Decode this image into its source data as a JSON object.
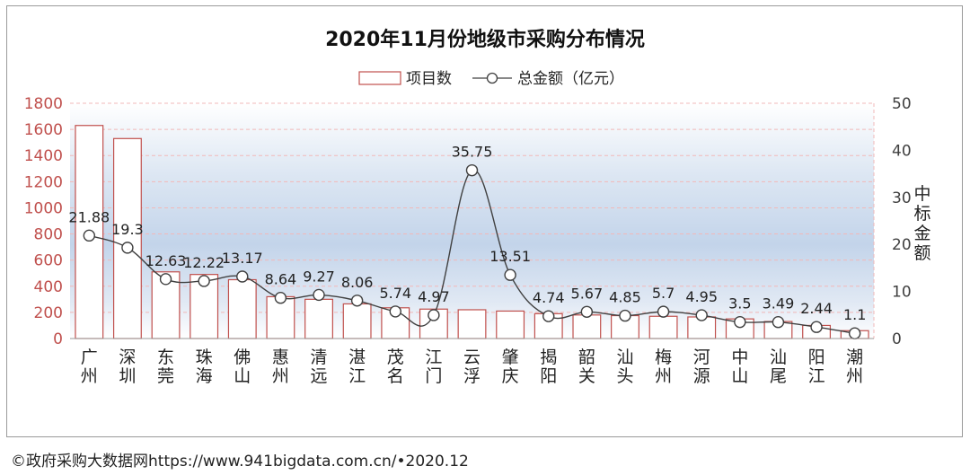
{
  "footer": {
    "source": "©政府采购大数据网https://www.941bigdata.com.cn/•2020.12"
  },
  "colors": {
    "bar_edge": "#c0504d",
    "bar_fill": "#ffffff",
    "line": "#404040",
    "left_axis": "#c0504d",
    "right_axis": "#404040",
    "grid": "#f2b8b8"
  },
  "chart_data": {
    "type": "bar+line",
    "title": "2020年11月份地级市采购分布情况",
    "legend": {
      "bar": "项目数",
      "line": "总金额（亿元）",
      "position": "top-center"
    },
    "categories": [
      "广州",
      "深圳",
      "东莞",
      "珠海",
      "佛山",
      "惠州",
      "清远",
      "湛江",
      "茂名",
      "江门",
      "云浮",
      "肇庆",
      "揭阳",
      "韶关",
      "汕头",
      "梅州",
      "河源",
      "中山",
      "汕尾",
      "阳江",
      "潮州"
    ],
    "category_labels_vertical": [
      [
        "广",
        "州"
      ],
      [
        "深",
        "圳"
      ],
      [
        "东",
        "莞"
      ],
      [
        "珠",
        "海"
      ],
      [
        "佛",
        "山"
      ],
      [
        "惠",
        "州"
      ],
      [
        "清",
        "远"
      ],
      [
        "湛",
        "江"
      ],
      [
        "茂",
        "名"
      ],
      [
        "江",
        "门"
      ],
      [
        "云",
        "浮"
      ],
      [
        "肇",
        "庆"
      ],
      [
        "揭",
        "阳"
      ],
      [
        "韶",
        "关"
      ],
      [
        "汕",
        "头"
      ],
      [
        "梅",
        "州"
      ],
      [
        "河",
        "源"
      ],
      [
        "中",
        "山"
      ],
      [
        "汕",
        "尾"
      ],
      [
        "阳",
        "江"
      ],
      [
        "潮",
        "州"
      ]
    ],
    "series": [
      {
        "name": "项目数",
        "kind": "bar",
        "axis": "left",
        "values": [
          1630,
          1530,
          510,
          490,
          450,
          320,
          300,
          265,
          235,
          225,
          220,
          210,
          190,
          180,
          175,
          170,
          165,
          150,
          130,
          100,
          60
        ]
      },
      {
        "name": "总金额（亿元）",
        "kind": "line",
        "axis": "right",
        "values": [
          21.88,
          19.3,
          12.63,
          12.22,
          13.17,
          8.64,
          9.27,
          8.06,
          5.74,
          4.97,
          35.75,
          13.51,
          4.74,
          5.67,
          4.85,
          5.7,
          4.95,
          3.5,
          3.49,
          2.44,
          1.1
        ],
        "labels": [
          "21.88",
          "19.3",
          "12.63",
          "12.22",
          "13.17",
          "8.64",
          "9.27",
          "8.06",
          "5.74",
          "4.97",
          "35.75",
          "13.51",
          "4.74",
          "5.67",
          "4.85",
          "5.7",
          "4.95",
          "3.5",
          "3.49",
          "2.44",
          "1.1"
        ]
      }
    ],
    "left_axis": {
      "min": 0,
      "max": 1800,
      "step": 200,
      "ticks": [
        "0",
        "200",
        "400",
        "600",
        "800",
        "1000",
        "1200",
        "1400",
        "1600",
        "1800"
      ]
    },
    "right_axis": {
      "label_chars": [
        "中",
        "标",
        "金",
        "额"
      ],
      "min": 0,
      "max": 50,
      "step": 10,
      "ticks": [
        "0",
        "10",
        "20",
        "30",
        "40",
        "50"
      ]
    },
    "grid": true
  }
}
